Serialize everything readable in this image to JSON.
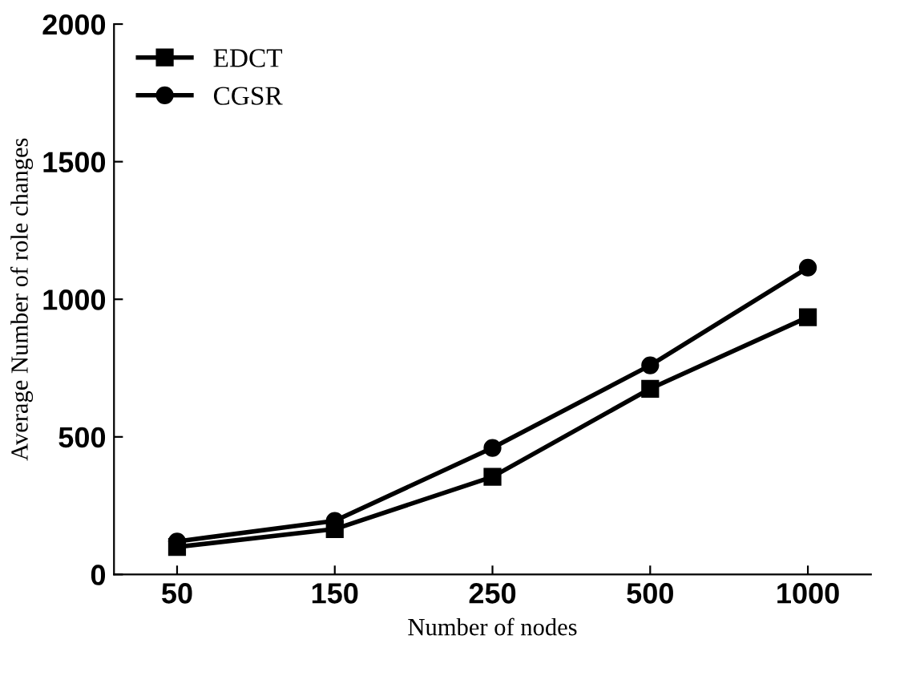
{
  "chart_data": {
    "type": "line",
    "xlabel": "Number of nodes",
    "ylabel": "Average Number of role changes",
    "categories": [
      "50",
      "150",
      "250",
      "500",
      "1000"
    ],
    "series": [
      {
        "name": "EDCT",
        "color": "#000000",
        "marker": "square",
        "values": [
          100,
          165,
          355,
          675,
          935
        ]
      },
      {
        "name": "CGSR",
        "color": "#000000",
        "marker": "circle",
        "values": [
          120,
          195,
          460,
          760,
          1115
        ]
      }
    ],
    "ylim": [
      0,
      2000
    ],
    "yticks": [
      0,
      500,
      1000,
      1500,
      2000
    ],
    "grid": false,
    "legend": "top left",
    "line_style": "solid"
  }
}
